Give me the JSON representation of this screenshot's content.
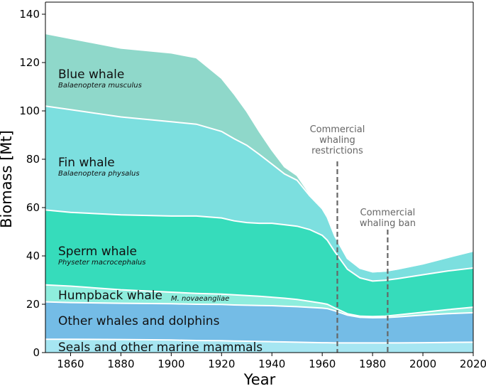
{
  "chart_data": {
    "type": "area",
    "stacked": true,
    "xlabel": "Year",
    "ylabel": "Biomass [Mt]",
    "xlim": [
      1850,
      2020
    ],
    "ylim": [
      0,
      145
    ],
    "xticks": [
      1860,
      1880,
      1900,
      1920,
      1940,
      1960,
      1980,
      2000,
      2020
    ],
    "yticks": [
      0,
      20,
      40,
      60,
      80,
      100,
      120,
      140
    ],
    "grid": false,
    "x": [
      1850,
      1860,
      1880,
      1900,
      1910,
      1920,
      1925,
      1930,
      1935,
      1940,
      1945,
      1950,
      1955,
      1960,
      1962,
      1965,
      1970,
      1975,
      1980,
      1985,
      1990,
      2000,
      2010,
      2020
    ],
    "series": [
      {
        "name": "Seals and other marine mammals",
        "color": "#a6e6f2",
        "values": [
          5.5,
          5.5,
          5.4,
          5.2,
          5.0,
          4.9,
          4.8,
          4.7,
          4.6,
          4.5,
          4.4,
          4.3,
          4.2,
          4.1,
          4.1,
          4.0,
          4.0,
          4.0,
          4.0,
          4.0,
          4.0,
          4.1,
          4.2,
          4.3
        ]
      },
      {
        "name": "Other whales and dolphins",
        "color": "#74bce6",
        "values": [
          15.5,
          15.2,
          15.0,
          15.0,
          15.0,
          15.0,
          14.9,
          14.9,
          14.9,
          14.9,
          14.8,
          14.7,
          14.5,
          14.3,
          14.1,
          13.3,
          11.5,
          10.6,
          10.4,
          10.5,
          10.8,
          11.4,
          11.9,
          12.2
        ]
      },
      {
        "name": "Humpback whale",
        "subtitle": "M. novaeangliae",
        "color": "#8eeddd",
        "values": [
          7.0,
          6.8,
          5.6,
          4.8,
          4.5,
          4.3,
          4.2,
          4.0,
          3.8,
          3.5,
          3.3,
          3.0,
          2.5,
          2.0,
          1.8,
          1.2,
          0.6,
          0.5,
          0.5,
          0.6,
          0.8,
          1.2,
          1.7,
          2.3
        ]
      },
      {
        "name": "Sperm whale",
        "subtitle": "Physeter macrocephalus",
        "color": "#36dcbb",
        "values": [
          31.0,
          30.5,
          31.0,
          31.5,
          32.0,
          31.5,
          30.6,
          30.2,
          30.2,
          30.6,
          30.4,
          30.3,
          29.7,
          28.1,
          26.5,
          23.2,
          18.4,
          15.8,
          14.7,
          14.8,
          15.0,
          15.5,
          16.0,
          16.2
        ]
      },
      {
        "name": "Fin whale",
        "subtitle": "Balaenoptera physalus",
        "color": "#7cdfdf",
        "values": [
          43.0,
          42.5,
          40.5,
          39.0,
          38.0,
          35.8,
          34.0,
          32.0,
          28.5,
          24.5,
          21.0,
          19.0,
          14.0,
          11.0,
          9.5,
          6.5,
          4.5,
          4.0,
          3.8,
          3.8,
          4.0,
          4.5,
          5.6,
          7.0
        ]
      },
      {
        "name": "Blue whale",
        "subtitle": "Balaenoptera musculus",
        "color": "#8fd8ca",
        "values": [
          30.0,
          29.5,
          28.5,
          28.5,
          27.5,
          22.0,
          18.5,
          14.0,
          9.5,
          5.8,
          3.0,
          2.0,
          0.8,
          0.2,
          0.1,
          0.0,
          0.0,
          0.0,
          0.0,
          0.0,
          0.0,
          0.0,
          0.0,
          0.0
        ]
      }
    ],
    "annotations": [
      {
        "x": 1966,
        "lines": [
          "Commercial",
          "whaling",
          "restrictions"
        ]
      },
      {
        "x": 1986,
        "lines": [
          "Commercial",
          "whaling ban"
        ]
      }
    ]
  }
}
